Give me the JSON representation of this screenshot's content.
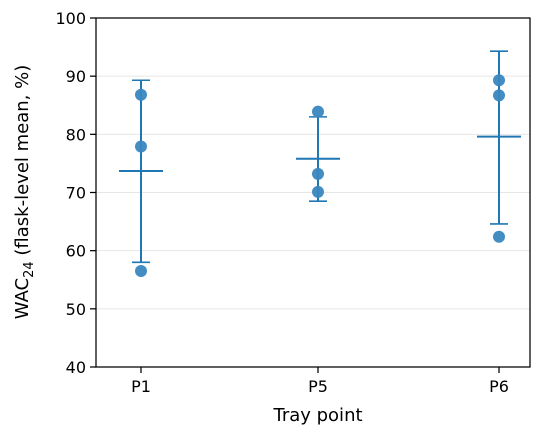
{
  "chart_data": {
    "type": "scatter",
    "title": "",
    "xlabel": "Tray point",
    "ylabel": {
      "main": "WAC",
      "subscript": "24",
      "suffix": " (flask-level mean, %)"
    },
    "categories": [
      "P1",
      "P5",
      "P6"
    ],
    "ylim": [
      40,
      100
    ],
    "yticks": [
      40,
      50,
      60,
      70,
      80,
      90,
      100
    ],
    "grid": "horizontal",
    "points": [
      [
        56.5,
        77.9,
        86.8
      ],
      [
        70.1,
        73.2,
        83.9
      ],
      [
        62.4,
        86.7,
        89.3
      ]
    ],
    "mean": [
      73.7,
      75.8,
      79.6
    ],
    "error_low": [
      58.0,
      68.5,
      64.6
    ],
    "error_high": [
      89.3,
      83.0,
      94.3
    ],
    "colors": {
      "points": "#3a87c0",
      "errorbar": "#1f77b4",
      "grid": "#e6e6e6",
      "axis": "#000000"
    }
  }
}
